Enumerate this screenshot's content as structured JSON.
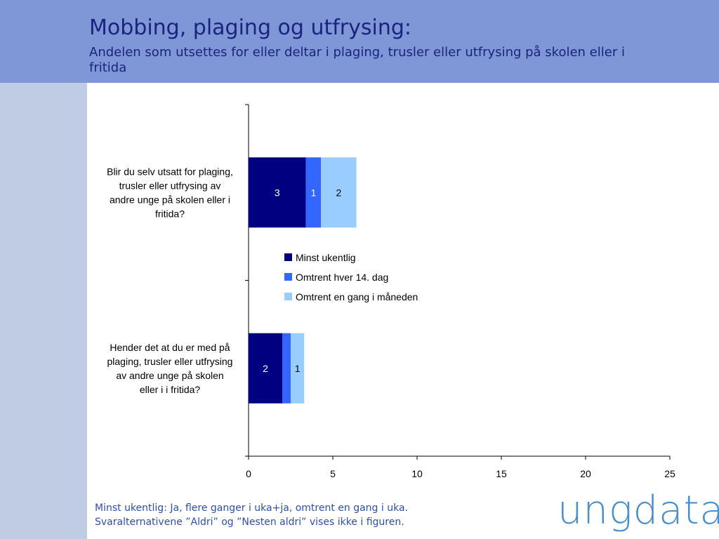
{
  "header": {
    "title": "Mobbing, plaging og utfrysing:",
    "subtitle": "Andelen som utsettes for eller deltar i plaging, trusler eller utfrysing på skolen eller i fritida"
  },
  "chart_data": {
    "type": "bar",
    "orientation": "horizontal",
    "stacked": true,
    "categories": [
      "Blir du selv utsatt for plaging, trusler eller utfrysing av andre unge på skolen eller i fritida?",
      "Hender det at du er med på plaging, trusler eller utfrysing av andre unge på skolen eller i i fritida?"
    ],
    "category_lines": [
      [
        "Blir du selv utsatt for plaging,",
        "trusler eller utfrysing av",
        "andre unge på skolen eller i",
        "fritida?"
      ],
      [
        "Hender det at du er med på",
        "plaging, trusler eller utfrysing",
        "av andre unge på skolen",
        "eller i i fritida?"
      ]
    ],
    "series": [
      {
        "name": "Minst ukentlig",
        "color": "#000080",
        "label_color": "#ffffff",
        "values": [
          3.4,
          2.0
        ],
        "labels": [
          "3",
          "2"
        ]
      },
      {
        "name": "Omtrent hver 14. dag",
        "color": "#3366ff",
        "label_color": "#ffffff",
        "values": [
          0.9,
          0.5
        ],
        "labels": [
          "1",
          ""
        ]
      },
      {
        "name": "Omtrent en gang i måneden",
        "color": "#99ccff",
        "label_color": "#000000",
        "values": [
          2.1,
          0.8
        ],
        "labels": [
          "2",
          "1"
        ]
      }
    ],
    "xlim": [
      0,
      25
    ],
    "xticks": [
      "0",
      "5",
      "10",
      "15",
      "20",
      "25"
    ],
    "xlabel": "",
    "ylabel": "",
    "grid": false,
    "legend_position": "center"
  },
  "footnote": {
    "line1": "Minst ukentlig: Ja, flere ganger i uka+ja, omtrent en gang i uka.",
    "line2": "Svaralternativene ”Aldri” og ”Nesten aldri” vises ikke i figuren."
  },
  "logo": {
    "text": "ungdata",
    "color": "#4a8fc7"
  }
}
